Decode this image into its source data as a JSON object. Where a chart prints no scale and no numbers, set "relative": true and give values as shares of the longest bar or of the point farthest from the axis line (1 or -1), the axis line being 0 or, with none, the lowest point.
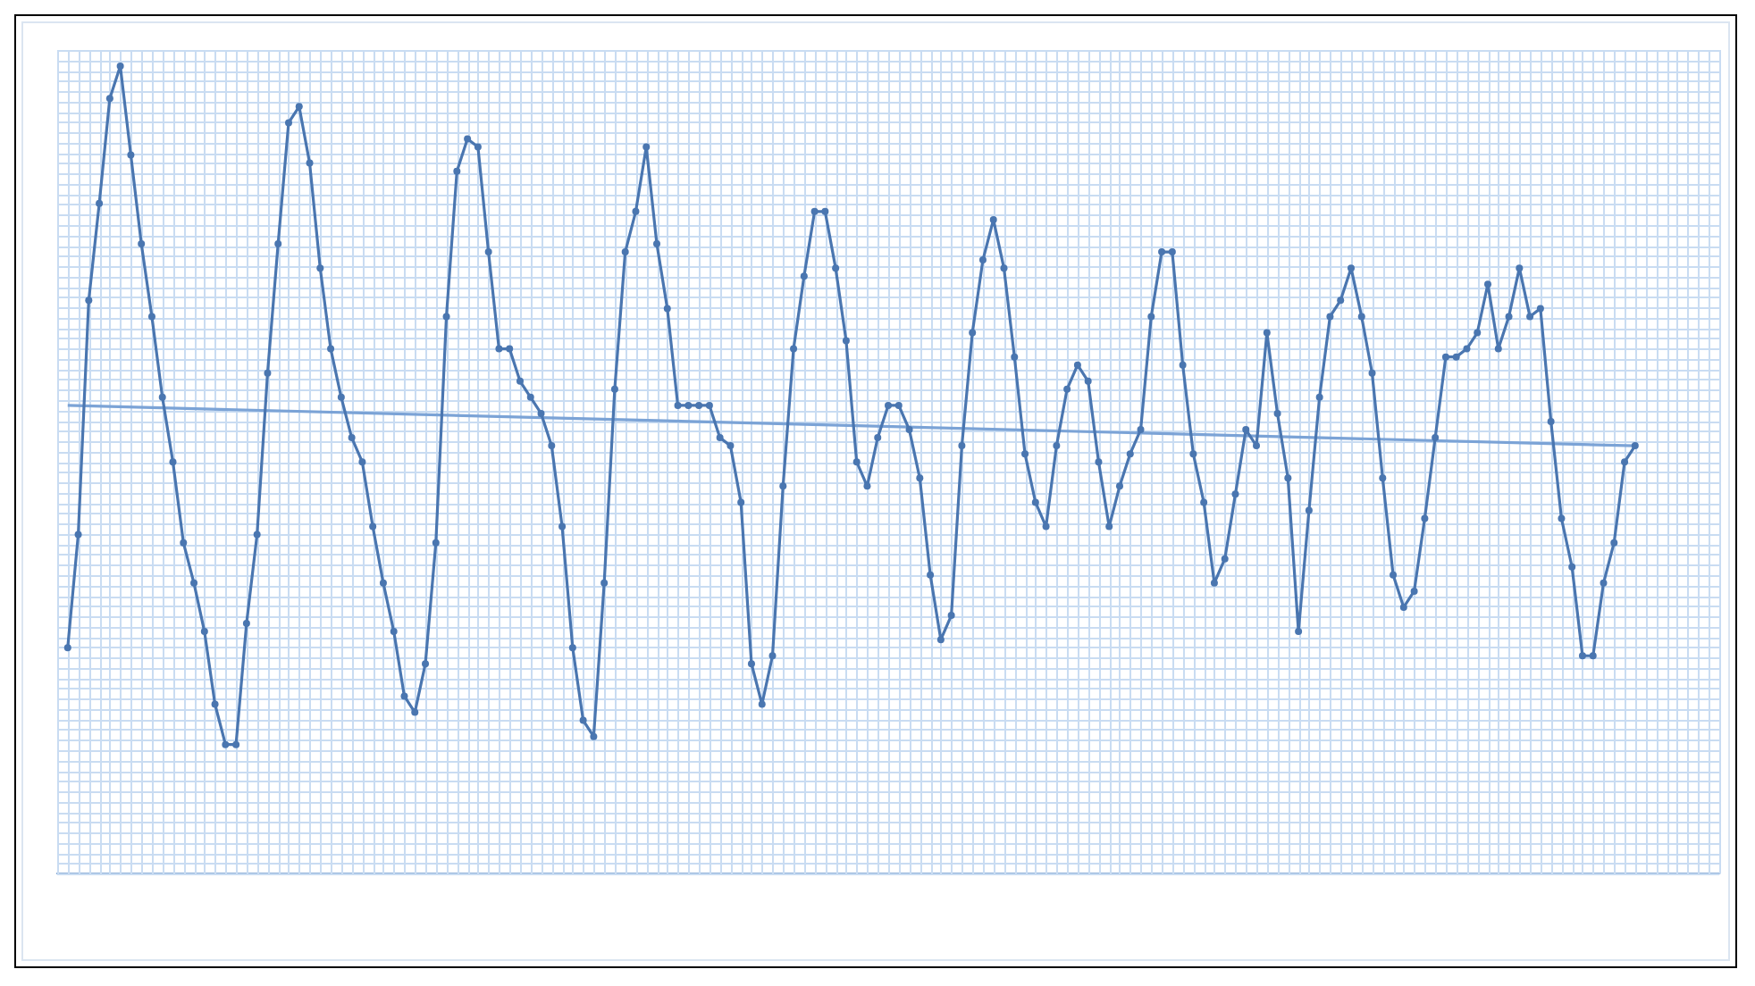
{
  "chart_data": {
    "type": "line",
    "relative": true,
    "grid": true,
    "marker": "circle",
    "line_style": "solid",
    "legend": false,
    "categories": [
      null,
      null,
      null,
      null,
      null,
      null,
      null,
      null,
      null,
      null,
      null,
      null,
      null,
      null,
      null,
      null,
      null,
      null,
      null,
      null,
      null,
      null,
      null,
      null,
      null,
      null,
      null,
      null,
      null,
      null,
      null,
      null,
      null,
      null,
      null,
      null,
      null,
      null,
      null,
      null,
      null,
      null,
      null,
      null,
      null,
      null,
      null,
      null,
      null,
      null,
      null,
      null,
      null,
      null,
      null,
      null,
      null,
      null,
      null,
      null,
      null,
      null,
      null,
      null,
      null,
      null,
      null,
      null,
      null,
      null,
      null,
      null,
      null,
      null,
      null,
      null,
      null,
      null,
      null,
      null,
      null,
      null,
      null,
      null,
      null,
      null,
      null,
      null,
      null,
      null,
      null,
      null,
      null,
      null,
      null,
      null,
      null,
      null,
      null,
      null,
      null,
      null,
      null,
      null,
      null,
      null,
      null,
      null,
      null,
      null,
      null,
      null,
      null,
      null,
      null,
      null,
      null,
      null,
      null,
      null,
      null,
      null,
      null,
      null,
      null,
      null,
      null,
      null,
      null,
      null,
      null,
      null,
      null,
      null,
      null,
      null,
      null,
      null,
      null,
      null,
      null,
      null,
      null,
      null,
      null,
      null,
      null,
      null,
      null,
      null,
      null,
      null,
      null,
      null,
      null,
      null,
      null,
      null,
      null
    ],
    "series": [
      {
        "color": "#4a76b0",
        "values": [
          null,
          0.28,
          0.42,
          0.71,
          0.83,
          0.96,
          1.0,
          0.89,
          0.78,
          0.69,
          0.59,
          0.51,
          0.41,
          0.36,
          0.3,
          0.21,
          0.16,
          0.16,
          0.31,
          0.42,
          0.62,
          0.78,
          0.93,
          0.95,
          0.88,
          0.75,
          0.65,
          0.59,
          0.54,
          0.51,
          0.43,
          0.36,
          0.3,
          0.22,
          0.2,
          0.26,
          0.41,
          0.69,
          0.87,
          0.91,
          0.9,
          0.77,
          0.65,
          0.65,
          0.61,
          0.59,
          0.57,
          0.53,
          0.43,
          0.28,
          0.19,
          0.17,
          0.36,
          0.6,
          0.77,
          0.82,
          0.9,
          0.78,
          0.7,
          0.58,
          0.58,
          0.58,
          0.58,
          0.54,
          0.53,
          0.46,
          0.26,
          0.21,
          0.27,
          0.48,
          0.65,
          0.74,
          0.82,
          0.82,
          0.75,
          0.66,
          0.51,
          0.48,
          0.54,
          0.58,
          0.58,
          0.55,
          0.49,
          0.37,
          0.29,
          0.32,
          0.53,
          0.67,
          0.76,
          0.81,
          0.75,
          0.64,
          0.52,
          0.46,
          0.43,
          0.53,
          0.6,
          0.63,
          0.61,
          0.51,
          0.43,
          0.48,
          0.52,
          0.55,
          0.69,
          0.77,
          0.77,
          0.63,
          0.52,
          0.46,
          0.36,
          0.39,
          0.47,
          0.55,
          0.53,
          0.67,
          0.57,
          0.49,
          0.3,
          0.45,
          0.59,
          0.69,
          0.71,
          0.75,
          0.69,
          0.62,
          0.49,
          0.37,
          0.33,
          0.35,
          0.44,
          0.54,
          0.64,
          0.64,
          0.65,
          0.67,
          0.73,
          0.65,
          0.69,
          0.75,
          0.69,
          0.7,
          0.56,
          0.44,
          0.38,
          0.27,
          0.27,
          0.36,
          0.41,
          0.51,
          0.53,
          null,
          null,
          null,
          null,
          null,
          null,
          null,
          null
        ]
      },
      {
        "marker": "none",
        "color": "#7ba3d6",
        "values": [
          null,
          0.58,
          null,
          null,
          null,
          null,
          null,
          null,
          null,
          null,
          null,
          null,
          null,
          null,
          null,
          null,
          null,
          null,
          null,
          null,
          null,
          null,
          null,
          null,
          null,
          null,
          null,
          null,
          null,
          null,
          null,
          null,
          null,
          null,
          null,
          null,
          null,
          null,
          null,
          null,
          null,
          null,
          null,
          null,
          null,
          null,
          null,
          null,
          null,
          null,
          null,
          null,
          null,
          null,
          null,
          null,
          null,
          null,
          null,
          null,
          null,
          null,
          null,
          null,
          null,
          null,
          null,
          null,
          null,
          null,
          null,
          null,
          null,
          null,
          null,
          null,
          null,
          null,
          null,
          null,
          null,
          null,
          null,
          null,
          null,
          null,
          null,
          null,
          null,
          null,
          null,
          null,
          null,
          null,
          null,
          null,
          null,
          null,
          null,
          null,
          null,
          null,
          null,
          null,
          null,
          null,
          null,
          null,
          null,
          null,
          null,
          null,
          null,
          null,
          null,
          null,
          null,
          null,
          null,
          null,
          null,
          null,
          null,
          null,
          null,
          null,
          null,
          null,
          null,
          null,
          null,
          null,
          null,
          null,
          null,
          null,
          null,
          null,
          null,
          null,
          null,
          null,
          null,
          null,
          null,
          null,
          null,
          null,
          null,
          null,
          0.53,
          null,
          null,
          null,
          null,
          null,
          null,
          null,
          null
        ]
      }
    ]
  }
}
